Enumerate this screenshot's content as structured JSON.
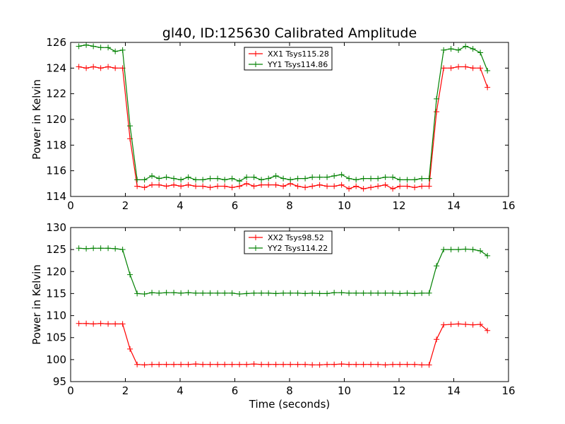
{
  "figure": {
    "title": "gl40, ID:125630 Calibrated Amplitude"
  },
  "chart_data": [
    {
      "type": "line",
      "title": "gl40, ID:125630 Calibrated Amplitude",
      "xlabel": "",
      "ylabel": "Power in Kelvin",
      "xlim": [
        0,
        16
      ],
      "ylim": [
        114,
        126
      ],
      "xticks": [
        0,
        2,
        4,
        6,
        8,
        10,
        12,
        14,
        16
      ],
      "yticks": [
        114,
        116,
        118,
        120,
        122,
        124,
        126
      ],
      "grid": false,
      "legend_position": "top-center",
      "x": [
        0.3,
        0.57,
        0.83,
        1.1,
        1.37,
        1.63,
        1.9,
        2.17,
        2.43,
        2.7,
        2.97,
        3.23,
        3.5,
        3.77,
        4.03,
        4.3,
        4.57,
        4.83,
        5.1,
        5.37,
        5.63,
        5.9,
        6.17,
        6.43,
        6.7,
        6.97,
        7.23,
        7.5,
        7.77,
        8.03,
        8.3,
        8.57,
        8.83,
        9.1,
        9.37,
        9.63,
        9.9,
        10.17,
        10.43,
        10.7,
        10.97,
        11.23,
        11.5,
        11.77,
        12.03,
        12.3,
        12.57,
        12.83,
        13.1,
        13.37,
        13.63,
        13.9,
        14.17,
        14.43,
        14.7,
        14.97,
        15.23
      ],
      "series": [
        {
          "name": "XX1 Tsys115.28",
          "color": "#ff0000",
          "values": [
            124.1,
            124.0,
            124.1,
            124.0,
            124.1,
            124.0,
            124.0,
            118.5,
            114.8,
            114.7,
            114.9,
            114.9,
            114.8,
            114.9,
            114.8,
            114.9,
            114.8,
            114.8,
            114.7,
            114.8,
            114.8,
            114.7,
            114.8,
            115.0,
            114.8,
            114.9,
            114.9,
            114.9,
            114.8,
            115.0,
            114.8,
            114.7,
            114.8,
            114.9,
            114.8,
            114.8,
            114.9,
            114.6,
            114.8,
            114.6,
            114.7,
            114.8,
            114.9,
            114.6,
            114.8,
            114.8,
            114.7,
            114.8,
            114.8,
            120.6,
            124.0,
            124.0,
            124.1,
            124.1,
            124.0,
            124.0,
            122.5
          ]
        },
        {
          "name": "YY1 Tsys114.86",
          "color": "#008000",
          "values": [
            125.7,
            125.8,
            125.7,
            125.6,
            125.6,
            125.3,
            125.4,
            119.5,
            115.3,
            115.3,
            115.6,
            115.4,
            115.5,
            115.4,
            115.3,
            115.5,
            115.3,
            115.3,
            115.4,
            115.4,
            115.3,
            115.4,
            115.2,
            115.5,
            115.5,
            115.3,
            115.4,
            115.6,
            115.4,
            115.3,
            115.4,
            115.4,
            115.5,
            115.5,
            115.5,
            115.6,
            115.7,
            115.4,
            115.3,
            115.4,
            115.4,
            115.4,
            115.5,
            115.5,
            115.3,
            115.3,
            115.3,
            115.4,
            115.4,
            121.6,
            125.4,
            125.5,
            125.4,
            125.7,
            125.5,
            125.2,
            123.8
          ]
        }
      ]
    },
    {
      "type": "line",
      "title": "",
      "xlabel": "Time (seconds)",
      "ylabel": "Power in Kelvin",
      "xlim": [
        0,
        16
      ],
      "ylim": [
        95,
        130
      ],
      "xticks": [
        0,
        2,
        4,
        6,
        8,
        10,
        12,
        14,
        16
      ],
      "yticks": [
        95,
        100,
        105,
        110,
        115,
        120,
        125,
        130
      ],
      "grid": false,
      "legend_position": "top-center",
      "x": [
        0.3,
        0.57,
        0.83,
        1.1,
        1.37,
        1.63,
        1.9,
        2.17,
        2.43,
        2.7,
        2.97,
        3.23,
        3.5,
        3.77,
        4.03,
        4.3,
        4.57,
        4.83,
        5.1,
        5.37,
        5.63,
        5.9,
        6.17,
        6.43,
        6.7,
        6.97,
        7.23,
        7.5,
        7.77,
        8.03,
        8.3,
        8.57,
        8.83,
        9.1,
        9.37,
        9.63,
        9.9,
        10.17,
        10.43,
        10.7,
        10.97,
        11.23,
        11.5,
        11.77,
        12.03,
        12.3,
        12.57,
        12.83,
        13.1,
        13.37,
        13.63,
        13.9,
        14.17,
        14.43,
        14.7,
        14.97,
        15.23
      ],
      "series": [
        {
          "name": "XX2 Tsys98.52",
          "color": "#ff0000",
          "values": [
            108.2,
            108.2,
            108.1,
            108.2,
            108.1,
            108.1,
            108.1,
            102.4,
            98.9,
            98.8,
            98.9,
            98.9,
            98.9,
            98.9,
            98.9,
            98.9,
            99.0,
            98.9,
            98.9,
            98.9,
            98.9,
            98.9,
            98.9,
            98.9,
            99.0,
            98.9,
            98.9,
            98.9,
            98.9,
            98.9,
            98.9,
            98.9,
            98.8,
            98.8,
            98.9,
            98.9,
            99.0,
            98.9,
            98.9,
            98.9,
            98.9,
            98.9,
            98.8,
            98.9,
            98.9,
            98.9,
            98.9,
            98.8,
            98.8,
            104.6,
            107.9,
            108.0,
            108.1,
            108.0,
            107.9,
            108.0,
            106.6
          ]
        },
        {
          "name": "YY2 Tsys114.22",
          "color": "#008000",
          "values": [
            125.3,
            125.2,
            125.3,
            125.3,
            125.3,
            125.2,
            125.0,
            119.3,
            115.0,
            114.9,
            115.2,
            115.1,
            115.2,
            115.2,
            115.1,
            115.2,
            115.1,
            115.1,
            115.1,
            115.1,
            115.1,
            115.1,
            114.9,
            115.0,
            115.1,
            115.1,
            115.1,
            115.0,
            115.1,
            115.1,
            115.1,
            115.0,
            115.1,
            115.0,
            115.0,
            115.2,
            115.2,
            115.1,
            115.1,
            115.1,
            115.1,
            115.1,
            115.1,
            115.1,
            115.0,
            115.1,
            115.0,
            115.1,
            115.1,
            121.3,
            125.0,
            125.0,
            125.0,
            125.1,
            125.0,
            124.7,
            123.6
          ]
        }
      ]
    }
  ]
}
